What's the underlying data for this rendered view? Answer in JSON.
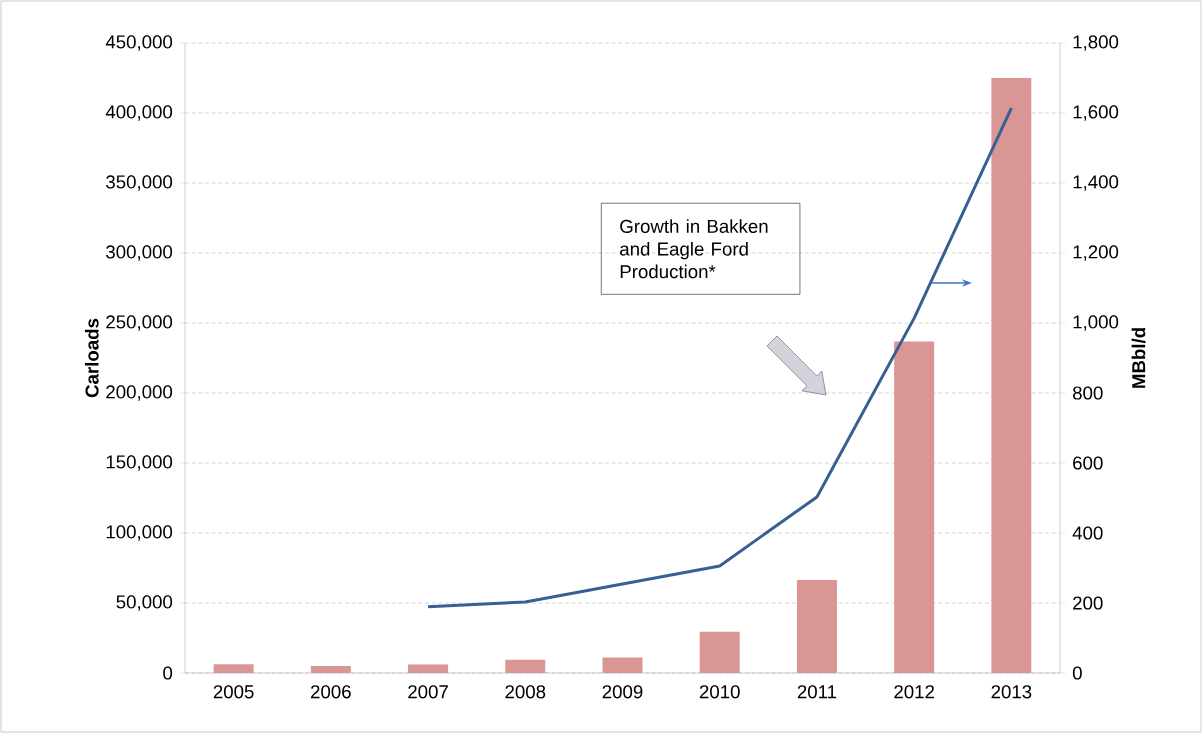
{
  "chart_data": {
    "type": "bar",
    "categories": [
      "2005",
      "2006",
      "2007",
      "2008",
      "2009",
      "2010",
      "2011",
      "2012",
      "2013"
    ],
    "series": [
      {
        "color": "#d99694",
        "values": [
          6300,
          5000,
          6000,
          9500,
          11000,
          29500,
          66500,
          236800,
          425000
        ]
      },
      {
        "type": "line",
        "axis": "y2",
        "color": "#376092",
        "values": [
          null,
          null,
          189,
          203,
          254,
          306,
          503,
          1014,
          1614
        ]
      }
    ],
    "ylabel": "Carloads",
    "y2label": "MBbl/d",
    "ylim": [
      0,
      450000
    ],
    "yticks": [
      0,
      {
        "value": 50000,
        "label": "50,000"
      },
      {
        "value": 100000,
        "label": "100,000"
      },
      {
        "value": 150000,
        "label": "150,000"
      },
      {
        "value": 200000,
        "label": "200,000"
      },
      {
        "value": 250000,
        "label": "250,000"
      },
      {
        "value": 300000,
        "label": "300,000"
      },
      {
        "value": 350000,
        "label": "350,000"
      },
      {
        "value": 400000,
        "label": "400,000"
      },
      {
        "value": 450000,
        "label": "450,000"
      }
    ],
    "y2lim": [
      0,
      1800
    ],
    "y2ticks": [
      0,
      200,
      400,
      600,
      800,
      {
        "value": 1000,
        "label": "1,000"
      },
      {
        "value": 1200,
        "label": "1,200"
      },
      {
        "value": 1400,
        "label": "1,400"
      },
      {
        "value": 1600,
        "label": "1,600"
      },
      {
        "value": 1800,
        "label": "1,800"
      }
    ],
    "grid": "y",
    "annotations": [
      "Growth in Bakken and Eagle Ford Production*"
    ]
  }
}
